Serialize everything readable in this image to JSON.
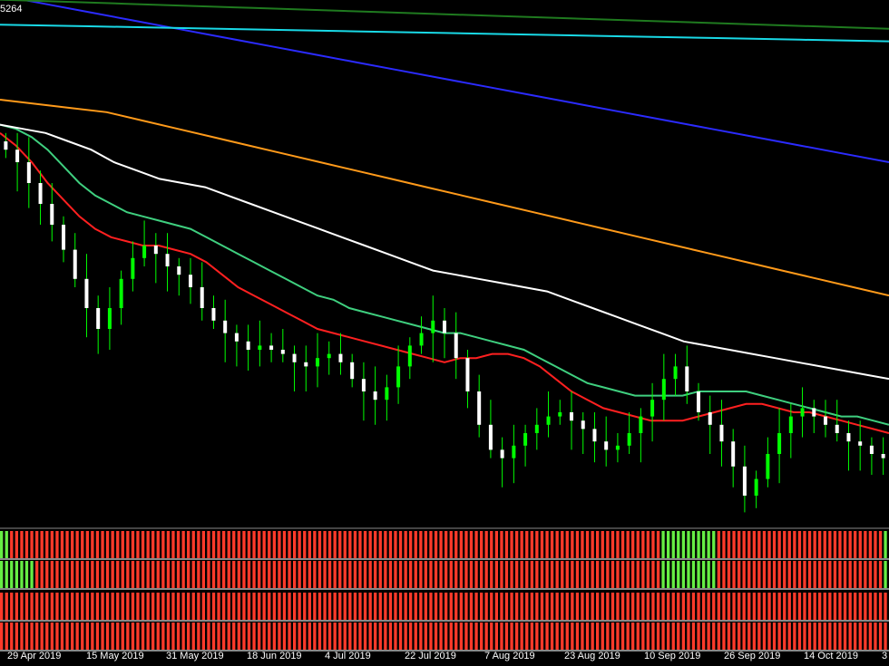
{
  "header": {
    "price_readout": "5264"
  },
  "colors": {
    "background": "#000000",
    "bull_candle": "#00ff00",
    "bear_candle": "#ffffff",
    "wick": "#00ff00",
    "ma_red": "#ff2020",
    "ma_green": "#3fcf7f",
    "ma_white": "#ffffff",
    "ma_orange": "#ff9a1a",
    "ma_blue": "#2b2bff",
    "ma_cyan": "#19d9e6",
    "ma_darkgreen": "#1f7a1f",
    "histo_up": "#66ee44",
    "histo_down": "#ff3a2a",
    "separator": "#888888"
  },
  "chart_data": {
    "type": "candlestick",
    "x_tick_labels": [
      "29 Apr 2019",
      "15 May 2019",
      "31 May 2019",
      "18 Jun 2019",
      "4 Jul 2019",
      "22 Jul 2019",
      "7 Aug 2019",
      "23 Aug 2019",
      "10 Sep 2019",
      "26 Sep 2019",
      "14 Oct 2019",
      "3"
    ],
    "ylim": [
      0,
      100
    ],
    "ohlc_close": [
      88,
      85,
      80,
      75,
      70,
      64,
      57,
      50,
      45,
      50,
      57,
      62,
      65,
      63,
      60,
      58,
      55,
      50,
      47,
      44,
      42,
      40,
      41,
      40,
      39,
      37,
      36,
      38,
      39,
      37,
      33,
      30,
      28,
      31,
      36,
      41,
      44,
      47,
      44,
      38,
      30,
      22,
      16,
      14,
      17,
      20,
      22,
      24,
      25,
      23,
      21,
      18,
      16,
      17,
      20,
      24,
      28,
      33,
      36,
      30,
      25,
      22,
      18,
      12,
      5,
      9,
      15,
      20,
      24,
      26,
      24,
      22,
      20,
      18,
      17,
      15,
      14
    ],
    "moving_averages": [
      {
        "color_key": "ma_red",
        "values": [
          92,
          89,
          85,
          80,
          76,
          72,
          69,
          67,
          66,
          65,
          65,
          64,
          63,
          61,
          58,
          55,
          53,
          51,
          49,
          47,
          45,
          44,
          43,
          42,
          41,
          40,
          39,
          38,
          37,
          38,
          38,
          39,
          39,
          38,
          36,
          33,
          30,
          28,
          26,
          25,
          24,
          23,
          23,
          23,
          24,
          25,
          26,
          27,
          27,
          26,
          25,
          25,
          24,
          23,
          22,
          21,
          20
        ]
      },
      {
        "color_key": "ma_green",
        "values": [
          94,
          93,
          91,
          88,
          84,
          80,
          77,
          75,
          73,
          72,
          71,
          70,
          69,
          67,
          65,
          63,
          61,
          59,
          57,
          55,
          53,
          52,
          50,
          49,
          48,
          47,
          46,
          45,
          44,
          44,
          43,
          42,
          41,
          40,
          38,
          36,
          34,
          32,
          31,
          30,
          29,
          29,
          29,
          29,
          30,
          30,
          30,
          30,
          29,
          28,
          27,
          26,
          25,
          24,
          24,
          23,
          22
        ]
      },
      {
        "color_key": "ma_white",
        "values": [
          94,
          93,
          92,
          90,
          88,
          85,
          83,
          81,
          80,
          79,
          77,
          75,
          73,
          71,
          69,
          67,
          65,
          63,
          61,
          59,
          58,
          57,
          56,
          55,
          54,
          52,
          50,
          48,
          46,
          44,
          42,
          41,
          40,
          39,
          38,
          37,
          36,
          35,
          34,
          33
        ]
      },
      {
        "color_key": "ma_orange",
        "values": [
          100,
          99,
          98,
          97,
          95,
          93,
          91,
          89,
          87,
          85,
          83,
          81,
          79,
          77,
          75,
          73,
          71,
          69,
          67,
          65,
          63,
          61,
          59,
          57,
          55,
          53
        ]
      },
      {
        "color_key": "ma_blue",
        "values": [
          125,
          123,
          121,
          119,
          117,
          115,
          113,
          111,
          109,
          107,
          105,
          103,
          101,
          99,
          97,
          95,
          93,
          91,
          89,
          87,
          85
        ]
      },
      {
        "color_key": "ma_cyan",
        "values": [
          118,
          117.6,
          117.2,
          116.8,
          116.4,
          116,
          115.6,
          115.2,
          114.8,
          114.4,
          114
        ]
      },
      {
        "color_key": "ma_darkgreen",
        "values": [
          124,
          123,
          122,
          121,
          120,
          119,
          118,
          117
        ]
      }
    ],
    "indicator_rows": [
      {
        "up_ranges": [
          [
            0,
            1
          ],
          [
            131,
            141
          ],
          [
            175,
            176
          ]
        ]
      },
      {
        "up_ranges": [
          [
            0,
            6
          ],
          [
            131,
            141
          ],
          [
            175,
            176
          ]
        ]
      },
      {
        "up_ranges": []
      },
      {
        "up_ranges": []
      }
    ],
    "indicator_bar_count": 176
  }
}
